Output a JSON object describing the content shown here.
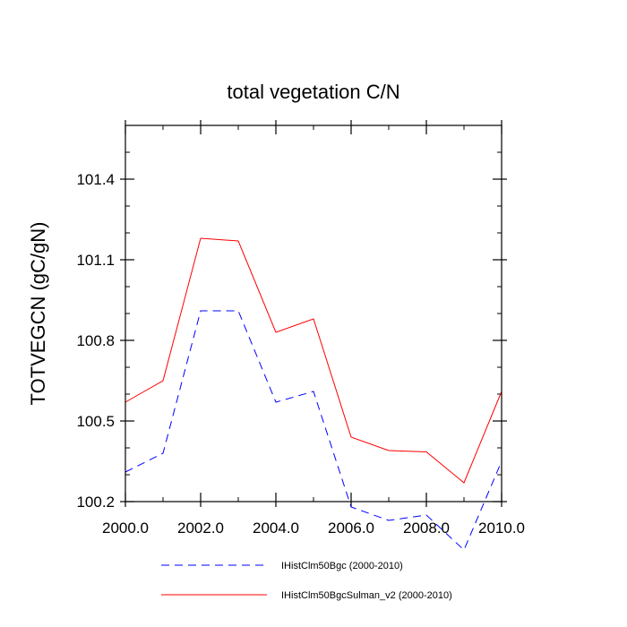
{
  "chart_data": {
    "type": "line",
    "title": "total vegetation C/N",
    "xlabel": "",
    "ylabel": "TOTVEGCN  (gC/gN)",
    "xlim": [
      2000,
      2010
    ],
    "ylim": [
      100.2,
      101.6
    ],
    "x_ticks": [
      2000,
      2002,
      2004,
      2006,
      2008,
      2010
    ],
    "x_tick_labels": [
      "2000.0",
      "2002.0",
      "2004.0",
      "2006.0",
      "2008.0",
      "2010.0"
    ],
    "y_ticks": [
      100.2,
      100.5,
      100.8,
      101.1,
      101.4
    ],
    "y_tick_labels": [
      "100.2",
      "100.5",
      "100.8",
      "101.1",
      "101.4"
    ],
    "grid": false,
    "legend_position": "bottom",
    "x": [
      2000,
      2001,
      2002,
      2003,
      2004,
      2005,
      2006,
      2007,
      2008,
      2009,
      2010
    ],
    "series": [
      {
        "name": "IHistClm50Bgc (2000-2010)",
        "color": "#0000ff",
        "style": "dashed",
        "values": [
          100.31,
          100.38,
          100.91,
          100.91,
          100.57,
          100.61,
          100.18,
          100.13,
          100.15,
          100.02,
          100.35
        ]
      },
      {
        "name": "IHistClm50BgcSulman_v2 (2000-2010)",
        "color": "#ff0000",
        "style": "solid",
        "values": [
          100.57,
          100.65,
          101.18,
          101.17,
          100.83,
          100.88,
          100.44,
          100.39,
          100.385,
          100.27,
          100.61
        ]
      }
    ]
  }
}
